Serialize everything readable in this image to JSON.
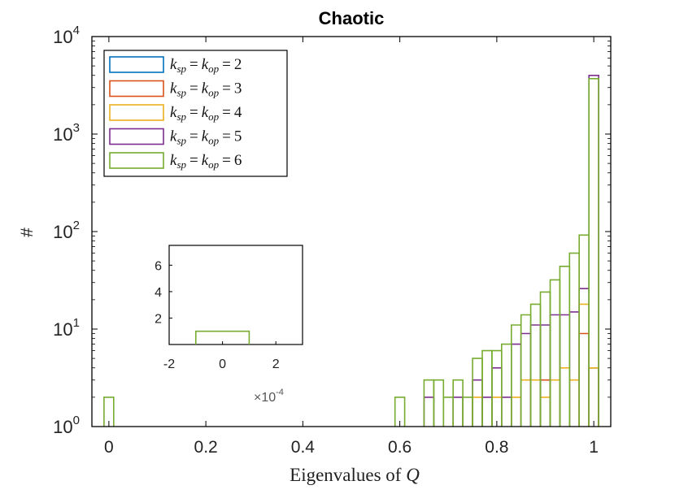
{
  "chart_data": {
    "type": "histogram",
    "title": "Chaotic",
    "xlabel": "Eigenvalues of",
    "xlabel_var": "Q",
    "ylabel": "#",
    "xlim": [
      -0.035,
      1.035
    ],
    "ylim": [
      1,
      10000
    ],
    "yscale": "log",
    "bin_width": 0.02,
    "x_ticks": [
      "0",
      "0.2",
      "0.4",
      "0.6",
      "0.8",
      "1"
    ],
    "x_tick_values": [
      0,
      0.2,
      0.4,
      0.6,
      0.8,
      1
    ],
    "y_ticks": [
      {
        "base": "10",
        "exp": "0",
        "value": 1
      },
      {
        "base": "10",
        "exp": "1",
        "value": 10
      },
      {
        "base": "10",
        "exp": "2",
        "value": 100
      },
      {
        "base": "10",
        "exp": "3",
        "value": 1000
      },
      {
        "base": "10",
        "exp": "4",
        "value": 10000
      }
    ],
    "legend": {
      "location": "top-left",
      "entries": [
        {
          "k": "k",
          "sub1": "sp",
          "sub2": "op",
          "eq": "=",
          "value": "2"
        },
        {
          "k": "k",
          "sub1": "sp",
          "sub2": "op",
          "eq": "=",
          "value": "3"
        },
        {
          "k": "k",
          "sub1": "sp",
          "sub2": "op",
          "eq": "=",
          "value": "4"
        },
        {
          "k": "k",
          "sub1": "sp",
          "sub2": "op",
          "eq": "=",
          "value": "5"
        },
        {
          "k": "k",
          "sub1": "sp",
          "sub2": "op",
          "eq": "=",
          "value": "6"
        }
      ]
    },
    "series": [
      {
        "name": "k_sp = k_op = 2",
        "color": "#0072BD",
        "bars": [
          [
            0.99,
            1.01,
            4
          ]
        ]
      },
      {
        "name": "k_sp = k_op = 3",
        "color": "#D95319",
        "bars": [
          [
            0.89,
            0.91,
            3
          ],
          [
            0.97,
            0.99,
            9
          ],
          [
            0.99,
            1.01,
            4
          ]
        ]
      },
      {
        "name": "k_sp = k_op = 4",
        "color": "#EDB120",
        "bars": [
          [
            0.75,
            0.77,
            2
          ],
          [
            0.79,
            0.81,
            2
          ],
          [
            0.83,
            0.85,
            2
          ],
          [
            0.85,
            0.87,
            3
          ],
          [
            0.87,
            0.89,
            3
          ],
          [
            0.89,
            0.91,
            2
          ],
          [
            0.91,
            0.93,
            3
          ],
          [
            0.93,
            0.95,
            4
          ],
          [
            0.95,
            0.97,
            3
          ],
          [
            0.97,
            0.99,
            18
          ],
          [
            0.99,
            1.01,
            4
          ]
        ]
      },
      {
        "name": "k_sp = k_op = 5",
        "color": "#7E2F8E",
        "bars": [
          [
            0.65,
            0.67,
            2
          ],
          [
            0.71,
            0.73,
            2
          ],
          [
            0.75,
            0.77,
            3
          ],
          [
            0.77,
            0.79,
            2
          ],
          [
            0.79,
            0.81,
            4
          ],
          [
            0.81,
            0.83,
            2
          ],
          [
            0.83,
            0.85,
            7
          ],
          [
            0.85,
            0.87,
            9
          ],
          [
            0.87,
            0.89,
            11
          ],
          [
            0.89,
            0.91,
            11
          ],
          [
            0.91,
            0.93,
            14
          ],
          [
            0.93,
            0.95,
            14
          ],
          [
            0.95,
            0.97,
            15
          ],
          [
            0.97,
            0.99,
            26
          ],
          [
            0.99,
            1.01,
            4000
          ]
        ]
      },
      {
        "name": "k_sp = k_op = 6",
        "color": "#77AC30",
        "bars": [
          [
            -0.01,
            0.01,
            2
          ],
          [
            0.59,
            0.61,
            2
          ],
          [
            0.65,
            0.67,
            3
          ],
          [
            0.67,
            0.69,
            3
          ],
          [
            0.69,
            0.71,
            2
          ],
          [
            0.71,
            0.73,
            3
          ],
          [
            0.73,
            0.75,
            2
          ],
          [
            0.75,
            0.77,
            5
          ],
          [
            0.77,
            0.79,
            6
          ],
          [
            0.79,
            0.81,
            6
          ],
          [
            0.81,
            0.83,
            7
          ],
          [
            0.83,
            0.85,
            11
          ],
          [
            0.85,
            0.87,
            14
          ],
          [
            0.87,
            0.89,
            18
          ],
          [
            0.89,
            0.91,
            24
          ],
          [
            0.91,
            0.93,
            32
          ],
          [
            0.93,
            0.95,
            44
          ],
          [
            0.95,
            0.97,
            60
          ],
          [
            0.97,
            0.99,
            92
          ],
          [
            0.99,
            1.01,
            3700
          ]
        ]
      }
    ],
    "inset": {
      "type": "histogram",
      "xlim": [
        -0.0002,
        0.0003
      ],
      "ylim": [
        0,
        7.5
      ],
      "x_ticks": [
        "-2",
        "0",
        "2"
      ],
      "x_tick_values": [
        -0.0002,
        0,
        0.0002
      ],
      "y_ticks": [
        "2",
        "4",
        "6"
      ],
      "y_tick_values": [
        2,
        4,
        6
      ],
      "x_multiplier": {
        "base": "×10",
        "exp": "-4"
      },
      "series": [
        {
          "name": "k_sp = k_op = 6",
          "color": "#77AC30",
          "bars": [
            [
              -0.0001,
              0.0001,
              1
            ]
          ]
        }
      ]
    }
  }
}
